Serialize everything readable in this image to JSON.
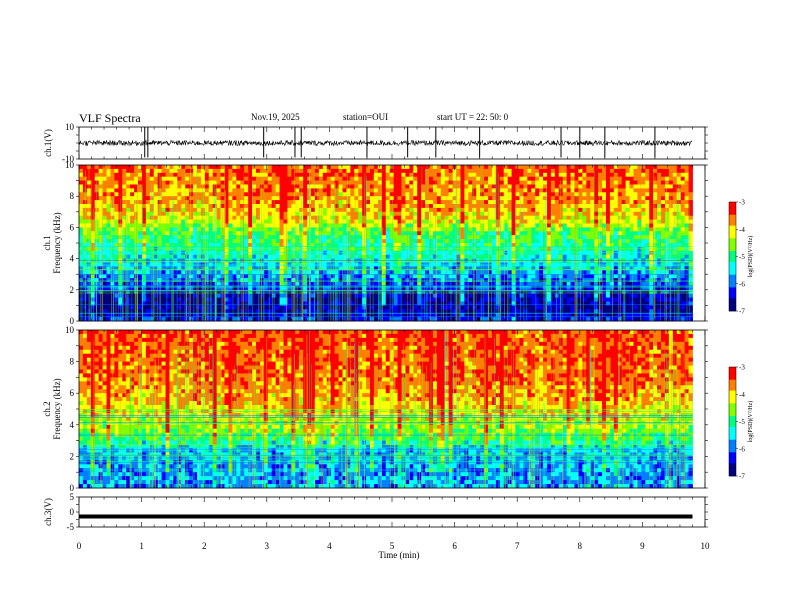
{
  "header": {
    "title": "VLF Spectra",
    "date": "Nov.19, 2025",
    "station": "station=OUI",
    "start_label": "start  UT = ",
    "start_time": "22: 50: 0"
  },
  "chart_data": [
    {
      "type": "line",
      "name": "ch1-waveform",
      "ylabel": "ch.1(V)",
      "ylim": [
        -10,
        10
      ],
      "yticks": [
        "10",
        "-10"
      ],
      "xlim": [
        0,
        10
      ],
      "baseline": 0,
      "burst_times_min": [
        1.05,
        1.1,
        2.95,
        3.45,
        3.55,
        4.6,
        5.25,
        5.7,
        6.4,
        7.7,
        8.0,
        8.4,
        9.2
      ]
    },
    {
      "type": "heatmap",
      "name": "ch1-spectrogram",
      "ylabel": "ch.1\nFrequency (kHz)",
      "ylabel_lines": [
        "ch.1",
        "Frequency (kHz)"
      ],
      "ylim": [
        0,
        10
      ],
      "yticks": [
        "0",
        "2",
        "4",
        "6",
        "8",
        "10"
      ],
      "xlim": [
        0,
        10
      ],
      "data_end_min": 9.8,
      "colorbar": {
        "label": "log(PSD)(V²/Hz)",
        "range": [
          -7,
          -3
        ],
        "ticks": [
          "-3",
          "-4",
          "-5",
          "-6",
          "-7"
        ]
      },
      "profile_khz_logpsd": [
        [
          0,
          -6.2
        ],
        [
          0.5,
          -6.8
        ],
        [
          1.5,
          -6.7
        ],
        [
          2.5,
          -6.1
        ],
        [
          3.5,
          -5.6
        ],
        [
          4.5,
          -5.2
        ],
        [
          5.5,
          -4.9
        ],
        [
          6.5,
          -4.2
        ],
        [
          7.5,
          -3.8
        ],
        [
          10,
          -3.6
        ]
      ]
    },
    {
      "type": "heatmap",
      "name": "ch2-spectrogram",
      "ylabel": "ch.2\nFrequency (kHz)",
      "ylabel_lines": [
        "ch.2",
        "Frequency (kHz)"
      ],
      "ylim": [
        0,
        10
      ],
      "yticks": [
        "0",
        "2",
        "4",
        "6",
        "8",
        "10"
      ],
      "xlim": [
        0,
        10
      ],
      "data_end_min": 9.8,
      "colorbar": {
        "label": "log(PSD)(V²/Hz)",
        "range": [
          -7,
          -3
        ],
        "ticks": [
          "-3",
          "-4",
          "-5",
          "-6",
          "-7"
        ]
      },
      "profile_khz_logpsd": [
        [
          0,
          -5.8
        ],
        [
          1,
          -5.9
        ],
        [
          2.5,
          -5.7
        ],
        [
          3,
          -5.0
        ],
        [
          4,
          -4.4
        ],
        [
          5.5,
          -3.9
        ],
        [
          7,
          -3.6
        ],
        [
          10,
          -3.5
        ]
      ]
    },
    {
      "type": "line",
      "name": "ch3-waveform",
      "ylabel": "ch.3(V)",
      "ylim": [
        -5,
        5
      ],
      "yticks": [
        "5",
        "0",
        "-5"
      ],
      "xlim": [
        0,
        10
      ],
      "level_v": -1.5,
      "data_end_min": 9.8
    }
  ],
  "xaxis": {
    "label": "Time (min)",
    "ticks": [
      "0",
      "1",
      "2",
      "3",
      "4",
      "5",
      "6",
      "7",
      "8",
      "9",
      "10"
    ]
  },
  "colors": {
    "colormap": [
      "#000080",
      "#0000ff",
      "#0080ff",
      "#00ffff",
      "#00ff80",
      "#80ff00",
      "#ffff00",
      "#ff8000",
      "#ff0000"
    ]
  }
}
